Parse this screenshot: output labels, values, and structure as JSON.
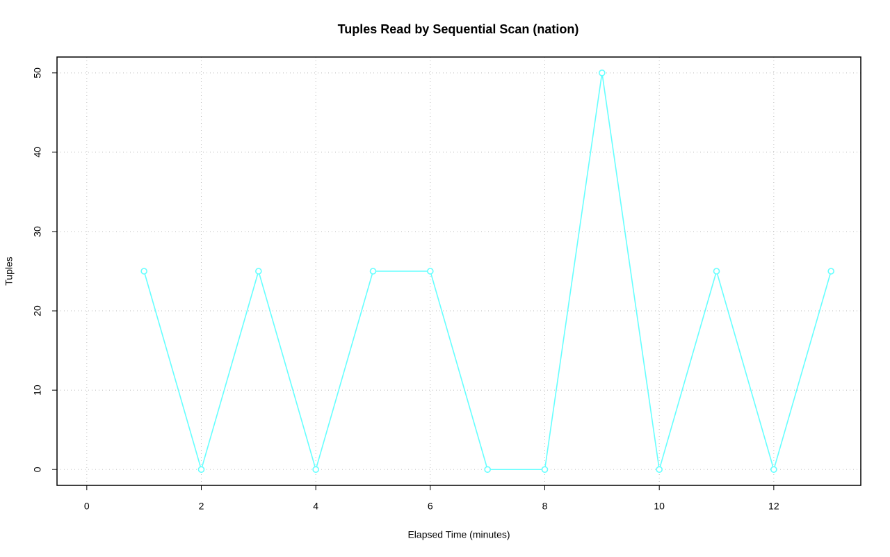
{
  "chart_data": {
    "type": "line",
    "title": "Tuples Read by Sequential Scan (nation)",
    "x_label": "Elapsed Time (minutes)",
    "y_label": "Tuples",
    "x": [
      1,
      2,
      3,
      4,
      5,
      6,
      7,
      8,
      9,
      10,
      11,
      12,
      13
    ],
    "values": [
      25,
      0,
      25,
      0,
      25,
      25,
      0,
      0,
      50,
      0,
      25,
      0,
      25
    ],
    "color": "#66ffff",
    "xlim": [
      -0.52,
      13.52
    ],
    "xticks": [
      0,
      2,
      4,
      6,
      8,
      10,
      12
    ],
    "ylim": [
      -2,
      52
    ],
    "yticks": [
      0,
      10,
      20,
      30,
      40,
      50
    ],
    "grid": true
  }
}
